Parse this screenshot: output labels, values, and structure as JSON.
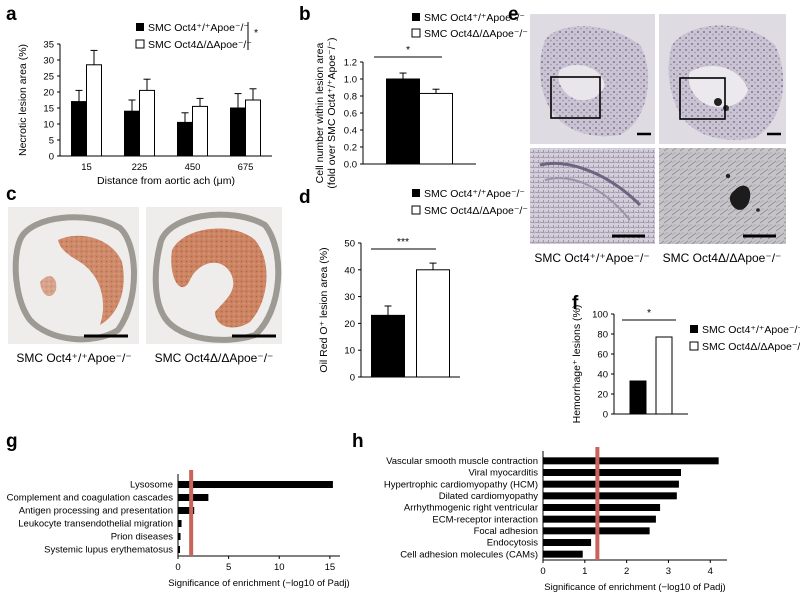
{
  "legend": {
    "wt": "SMC Oct4⁺/⁺Apoe⁻/⁻",
    "ko": "SMC Oct4Δ/ΔApoe⁻/⁻"
  },
  "panels": {
    "a": {
      "letter": "a",
      "significance": "*"
    },
    "b": {
      "letter": "b",
      "significance": "*"
    },
    "c": {
      "letter": "c",
      "caption_wt": "SMC Oct4⁺/⁺Apoe⁻/⁻",
      "caption_ko": "SMC Oct4Δ/ΔApoe⁻/⁻"
    },
    "d": {
      "letter": "d",
      "significance": "***"
    },
    "e": {
      "letter": "e",
      "caption_wt": "SMC Oct4⁺/⁺Apoe⁻/⁻",
      "caption_ko": "SMC Oct4Δ/ΔApoe⁻/⁻"
    },
    "f": {
      "letter": "f",
      "significance": "*"
    },
    "g": {
      "letter": "g"
    },
    "h": {
      "letter": "h"
    }
  },
  "colors": {
    "bar_wt": "#000000",
    "bar_ko": "#ffffff",
    "threshold": "#c9635c",
    "stain_red": "#b5552e"
  },
  "chart_data": [
    {
      "id": "a",
      "type": "bar",
      "xlabel": "Distance from aortic ach (μm)",
      "ylabel": "Necrotic lesion area (%)",
      "categories": [
        "15",
        "225",
        "450",
        "675"
      ],
      "series": [
        {
          "name": "SMC Oct4⁺/⁺Apoe⁻/⁻",
          "values": [
            17,
            14,
            10.5,
            15
          ],
          "errors": [
            3.5,
            3.5,
            3,
            4.5
          ]
        },
        {
          "name": "SMC Oct4Δ/ΔApoe⁻/⁻",
          "values": [
            28.5,
            20.5,
            15.5,
            17.5
          ],
          "errors": [
            4.5,
            3.5,
            2.5,
            3.5
          ]
        }
      ],
      "ylim": [
        0,
        35
      ],
      "yticks": [
        0,
        5,
        10,
        15,
        20,
        25,
        30,
        35
      ]
    },
    {
      "id": "b",
      "type": "bar",
      "ylabel": "Cell number within lesion area",
      "ylabel2": "(fold over SMC Oct4⁺/⁺Apoe⁻/⁻)",
      "series": [
        {
          "name": "SMC Oct4⁺/⁺Apoe⁻/⁻",
          "values": [
            1.0
          ],
          "errors": [
            0.07
          ]
        },
        {
          "name": "SMC Oct4Δ/ΔApoe⁻/⁻",
          "values": [
            0.83
          ],
          "errors": [
            0.05
          ]
        }
      ],
      "ylim": [
        0,
        1.2
      ],
      "yticks": [
        "0.0",
        "0.2",
        "0.4",
        "0.6",
        "0.8",
        "1.0",
        "1.2"
      ]
    },
    {
      "id": "d",
      "type": "bar",
      "ylabel": "Oil Red O⁺ lesion area (%)",
      "series": [
        {
          "name": "SMC Oct4⁺/⁺Apoe⁻/⁻",
          "values": [
            23
          ],
          "errors": [
            3.5
          ]
        },
        {
          "name": "SMC Oct4Δ/ΔApoe⁻/⁻",
          "values": [
            40
          ],
          "errors": [
            2.5
          ]
        }
      ],
      "ylim": [
        0,
        50
      ],
      "yticks": [
        0,
        10,
        20,
        30,
        40,
        50
      ]
    },
    {
      "id": "f",
      "type": "bar",
      "ylabel": "Hemorrhage⁺ lesions (%)",
      "series": [
        {
          "name": "SMC Oct4⁺/⁺Apoe⁻/⁻",
          "values": [
            33
          ]
        },
        {
          "name": "SMC Oct4Δ/ΔApoe⁻/⁻",
          "values": [
            77
          ]
        }
      ],
      "ylim": [
        0,
        100
      ],
      "yticks": [
        0,
        20,
        40,
        60,
        80,
        100
      ]
    },
    {
      "id": "g",
      "type": "bar",
      "orientation": "horizontal",
      "xlabel": "Significance of enrichment (−log10 of Padj)",
      "categories": [
        "Lysosome",
        "Complement and coagulation cascades",
        "Antigen processing and presentation",
        "Leukocyte transendothelial migration",
        "Prion diseases",
        "Systemic lupus erythematosus"
      ],
      "values": [
        15.3,
        3.0,
        1.6,
        0.35,
        0.25,
        0.2
      ],
      "threshold": 1.3,
      "xlim": [
        0,
        16
      ],
      "xticks": [
        0,
        5,
        10,
        15
      ]
    },
    {
      "id": "h",
      "type": "bar",
      "orientation": "horizontal",
      "xlabel": "Significance of enrichment (−log10 of Padj)",
      "categories": [
        "Vascular smooth muscle contraction",
        "Viral myocarditis",
        "Hypertrophic cardiomyopathy (HCM)",
        "Dilated cardiomyopathy",
        "Arrhythmogenic right ventricular",
        "ECM-receptor interaction",
        "Focal adhesion",
        "Endocytosis",
        "Cell adhesion molecules (CAMs)"
      ],
      "values": [
        4.2,
        3.3,
        3.25,
        3.2,
        2.8,
        2.7,
        2.55,
        1.15,
        0.95
      ],
      "threshold": 1.3,
      "xlim": [
        0,
        4.4
      ],
      "xticks": [
        0,
        1,
        2,
        3,
        4
      ]
    }
  ]
}
